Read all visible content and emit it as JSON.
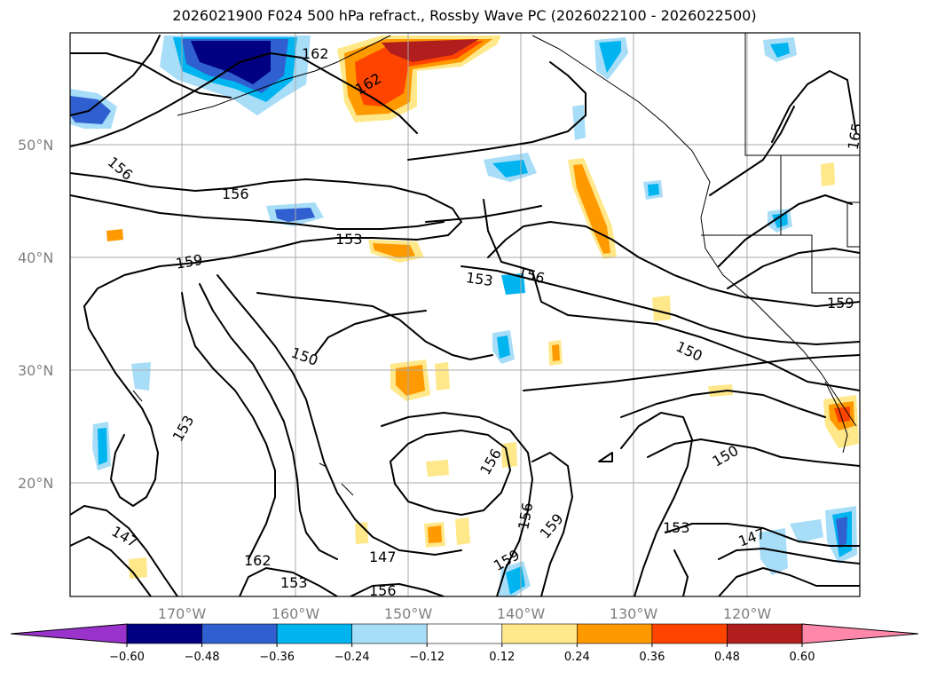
{
  "title": "2026021900 F024 500 hPa refract., Rossby Wave PC (2026022100 - 2026022500)",
  "lat_labels": [
    "50°N",
    "40°N",
    "30°N",
    "20°N"
  ],
  "lon_labels": [
    "170°W",
    "160°W",
    "150°W",
    "140°W",
    "130°W",
    "120°W"
  ],
  "colorbar": {
    "ticks": [
      "−0.60",
      "−0.48",
      "−0.36",
      "−0.24",
      "−0.12",
      "0.12",
      "0.24",
      "0.36",
      "0.48",
      "0.60"
    ],
    "colors": [
      "#9933cc",
      "#000080",
      "#3060d0",
      "#00b4f0",
      "#a8ddf8",
      "#ffffff",
      "#ffe88a",
      "#ff9900",
      "#ff4400",
      "#b01e1e",
      "#ff88aa"
    ]
  },
  "contour_labels": [
    "162",
    "162",
    "156",
    "156",
    "153",
    "159",
    "153",
    "156",
    "165",
    "150",
    "159",
    "150",
    "153",
    "150",
    "156",
    "156",
    "159",
    "147",
    "162",
    "153",
    "156",
    "147",
    "153",
    "147",
    "159"
  ],
  "colors": {
    "frame": "#000000",
    "grid": "#aaaaaa",
    "axis_label": "#808080"
  }
}
